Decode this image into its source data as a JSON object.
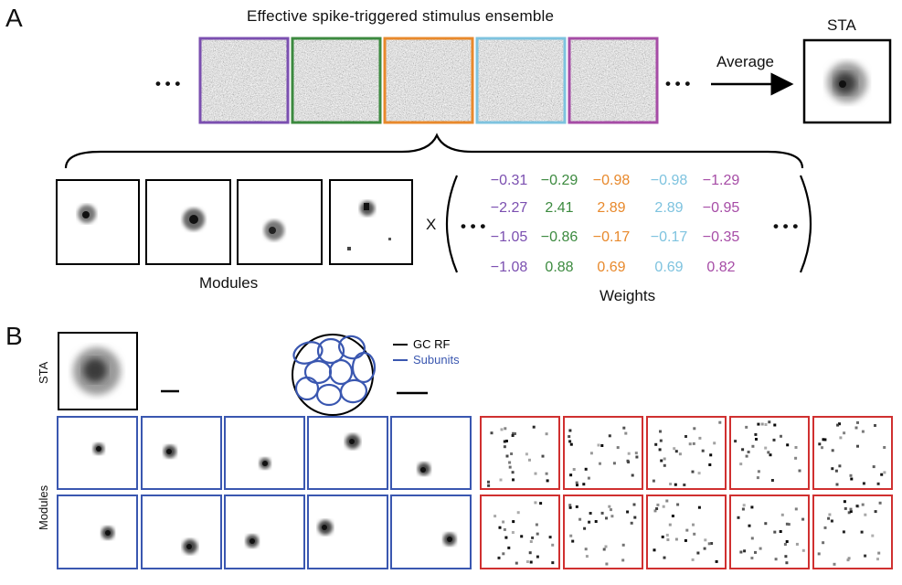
{
  "panel_a": {
    "letter": "A",
    "title": "Effective spike-triggered stimulus ensemble",
    "ellipsis": "• • •",
    "average_label": "Average",
    "sta_label": "STA",
    "frame_colors": [
      "#7b4fb0",
      "#3c8a3f",
      "#e8892c",
      "#7ec3df",
      "#a64ca6"
    ],
    "modules_label": "Modules",
    "times": "X",
    "weights_label": "Weights",
    "weights": [
      [
        "−0.31",
        "−0.29",
        "−0.98",
        "−0.98",
        "−1.29"
      ],
      [
        "−2.27",
        "2.41",
        "2.89",
        "2.89",
        "−0.95"
      ],
      [
        "−1.05",
        "−0.86",
        "−0.17",
        "−0.17",
        "−0.35"
      ],
      [
        "−1.08",
        "0.88",
        "0.69",
        "0.69",
        "0.82"
      ]
    ]
  },
  "panel_b": {
    "letter": "B",
    "sta_label": "STA",
    "modules_label": "Modules",
    "legend": [
      {
        "label": "GC RF",
        "color": "#000000"
      },
      {
        "label": "Subunits",
        "color": "#3a57b0"
      }
    ],
    "module_frame_colors": {
      "localized": "#3a57b0",
      "noise": "#d03030"
    }
  }
}
